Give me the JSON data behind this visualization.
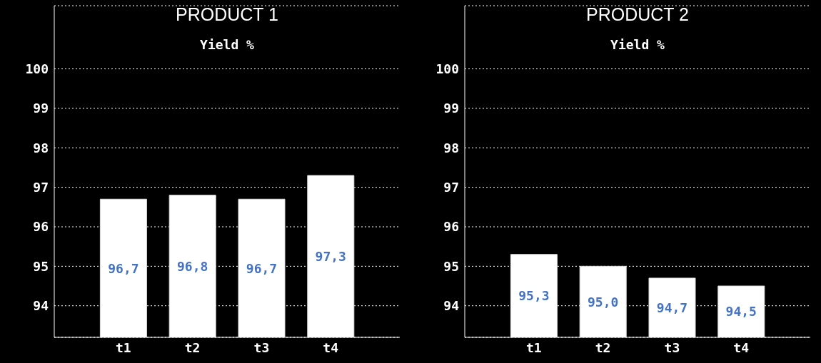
{
  "chart_data": [
    {
      "type": "bar",
      "title": "PRODUCT 1",
      "subtitle": "Yield %",
      "categories": [
        "t1",
        "t2",
        "t3",
        "t4"
      ],
      "values": [
        96.7,
        96.8,
        96.7,
        97.3
      ],
      "color": "#ffffff",
      "value_labels": [
        "96,7",
        "96,8",
        "96,7",
        "97,3"
      ],
      "ylim": [
        93.2,
        101.6
      ],
      "yticks": [
        94,
        95,
        96,
        97,
        98,
        99,
        100
      ],
      "grid": "y"
    },
    {
      "type": "bar",
      "title": "PRODUCT 2",
      "subtitle": "Yield %",
      "categories": [
        "t1",
        "t2",
        "t3",
        "t4"
      ],
      "values": [
        95.3,
        95.0,
        94.7,
        94.5
      ],
      "color": "#ffffff",
      "value_labels": [
        "95,3",
        "95,0",
        "94,7",
        "94,5"
      ],
      "ylim": [
        93.2,
        101.6
      ],
      "yticks": [
        94,
        95,
        96,
        97,
        98,
        99,
        100
      ],
      "grid": "y"
    }
  ]
}
